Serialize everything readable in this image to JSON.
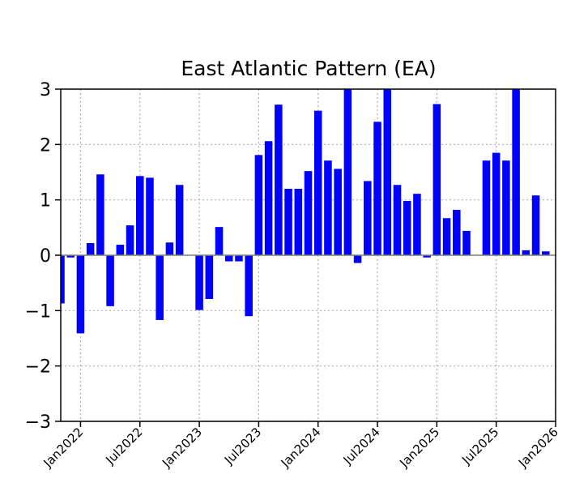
{
  "chart_data": {
    "type": "bar",
    "title": "East Atlantic Pattern (EA)",
    "xlabel": "",
    "ylabel": "",
    "ylim": [
      -3,
      3
    ],
    "grid": true,
    "bar_color": "#0000ff",
    "zero_line_color": "#808080",
    "grid_color": "#b0b0b0",
    "y_ticks": [
      "3",
      "2",
      "1",
      "0",
      "−1",
      "−2",
      "−3"
    ],
    "x_ticks": [
      {
        "label": "Jan2022",
        "date": "2022-01"
      },
      {
        "label": "Jul2022",
        "date": "2022-07"
      },
      {
        "label": "Jan2023",
        "date": "2023-01"
      },
      {
        "label": "Jul2023",
        "date": "2023-07"
      },
      {
        "label": "Jan2024",
        "date": "2024-01"
      },
      {
        "label": "Jul2024",
        "date": "2024-07"
      },
      {
        "label": "Jan2025",
        "date": "2025-01"
      },
      {
        "label": "Jul2025",
        "date": "2025-07"
      },
      {
        "label": "Jan2026",
        "date": "2026-01"
      }
    ],
    "x_range": [
      "2021-11",
      "2026-01"
    ],
    "bars": [
      {
        "date": "2021-11",
        "value": -0.87
      },
      {
        "date": "2021-12",
        "value": -0.04
      },
      {
        "date": "2022-01",
        "value": -1.41
      },
      {
        "date": "2022-02",
        "value": 0.22
      },
      {
        "date": "2022-03",
        "value": 1.46
      },
      {
        "date": "2022-04",
        "value": -0.92
      },
      {
        "date": "2022-05",
        "value": 0.19
      },
      {
        "date": "2022-06",
        "value": 0.54
      },
      {
        "date": "2022-07",
        "value": 1.43
      },
      {
        "date": "2022-08",
        "value": 1.4
      },
      {
        "date": "2022-09",
        "value": -1.17
      },
      {
        "date": "2022-10",
        "value": 0.23
      },
      {
        "date": "2022-11",
        "value": 1.27
      },
      {
        "date": "2022-12",
        "value": 0.0
      },
      {
        "date": "2023-01",
        "value": -0.99
      },
      {
        "date": "2023-02",
        "value": -0.79
      },
      {
        "date": "2023-03",
        "value": 0.51
      },
      {
        "date": "2023-04",
        "value": -0.11
      },
      {
        "date": "2023-05",
        "value": -0.11
      },
      {
        "date": "2023-06",
        "value": -1.1
      },
      {
        "date": "2023-07",
        "value": 1.81
      },
      {
        "date": "2023-08",
        "value": 2.06
      },
      {
        "date": "2023-09",
        "value": 2.72
      },
      {
        "date": "2023-10",
        "value": 1.2
      },
      {
        "date": "2023-11",
        "value": 1.2
      },
      {
        "date": "2023-12",
        "value": 1.52
      },
      {
        "date": "2024-01",
        "value": 2.61
      },
      {
        "date": "2024-02",
        "value": 1.71
      },
      {
        "date": "2024-03",
        "value": 1.56
      },
      {
        "date": "2024-04",
        "value": 3.0
      },
      {
        "date": "2024-05",
        "value": -0.14
      },
      {
        "date": "2024-06",
        "value": 1.34
      },
      {
        "date": "2024-07",
        "value": 2.41
      },
      {
        "date": "2024-08",
        "value": 3.0
      },
      {
        "date": "2024-09",
        "value": 1.27
      },
      {
        "date": "2024-10",
        "value": 0.98
      },
      {
        "date": "2024-11",
        "value": 1.11
      },
      {
        "date": "2024-12",
        "value": -0.04
      },
      {
        "date": "2025-01",
        "value": 2.73
      },
      {
        "date": "2025-02",
        "value": 0.67
      },
      {
        "date": "2025-03",
        "value": 0.82
      },
      {
        "date": "2025-04",
        "value": 0.44
      },
      {
        "date": "2025-05",
        "value": 0.0
      },
      {
        "date": "2025-06",
        "value": 1.71
      },
      {
        "date": "2025-07",
        "value": 1.85
      },
      {
        "date": "2025-08",
        "value": 1.71
      },
      {
        "date": "2025-09",
        "value": 3.0
      },
      {
        "date": "2025-10",
        "value": 0.09
      },
      {
        "date": "2025-11",
        "value": 1.08
      },
      {
        "date": "2025-12",
        "value": 0.07
      }
    ]
  }
}
